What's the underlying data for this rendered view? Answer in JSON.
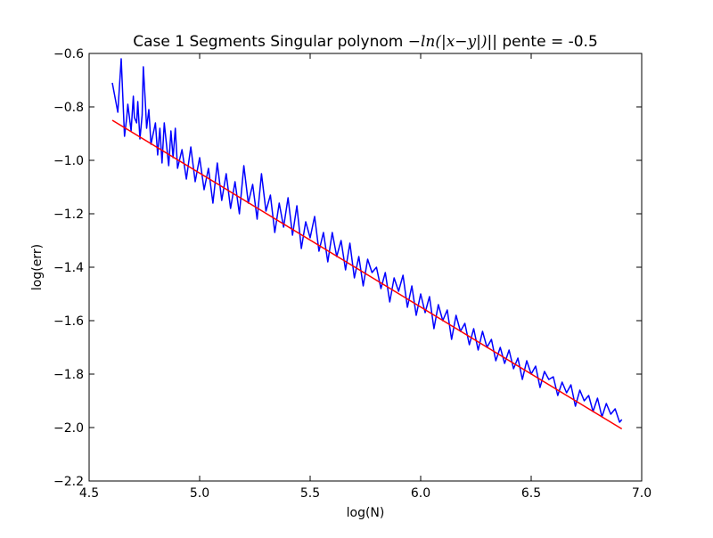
{
  "chart_data": {
    "type": "line",
    "title": {
      "prefix": "Case 1 Segments Singular polynom ",
      "math": "−ln(|x−y|)",
      "suffix": "|| pente = -0.5"
    },
    "xlabel": "log(N)",
    "ylabel": "log(err)",
    "xlim": [
      4.5,
      7.0
    ],
    "ylim": [
      -2.2,
      -0.6
    ],
    "xticks": [
      4.5,
      5.0,
      5.5,
      6.0,
      6.5,
      7.0
    ],
    "xtick_labels": [
      "4.5",
      "5.0",
      "5.5",
      "6.0",
      "6.5",
      "7.0"
    ],
    "yticks": [
      -0.6,
      -0.8,
      -1.0,
      -1.2,
      -1.4,
      -1.6,
      -1.8,
      -2.0,
      -2.2
    ],
    "ytick_labels": [
      "−0.6",
      "−0.8",
      "−1.0",
      "−1.2",
      "−1.4",
      "−1.6",
      "−1.8",
      "−2.0",
      "−2.2"
    ],
    "grid": false,
    "series": [
      {
        "color": "#0000ff",
        "x": [
          4.605,
          4.63,
          4.645,
          4.66,
          4.67,
          4.675,
          4.69,
          4.7,
          4.705,
          4.715,
          4.72,
          4.73,
          4.74,
          4.745,
          4.755,
          4.76,
          4.77,
          4.78,
          4.79,
          4.8,
          4.81,
          4.82,
          4.83,
          4.84,
          4.85,
          4.86,
          4.87,
          4.88,
          4.89,
          4.9,
          4.92,
          4.94,
          4.96,
          4.98,
          5.0,
          5.02,
          5.04,
          5.06,
          5.08,
          5.1,
          5.12,
          5.14,
          5.16,
          5.18,
          5.2,
          5.22,
          5.24,
          5.26,
          5.28,
          5.3,
          5.32,
          5.34,
          5.36,
          5.38,
          5.4,
          5.42,
          5.44,
          5.46,
          5.48,
          5.5,
          5.52,
          5.54,
          5.56,
          5.58,
          5.6,
          5.62,
          5.64,
          5.66,
          5.68,
          5.7,
          5.72,
          5.74,
          5.76,
          5.78,
          5.8,
          5.82,
          5.84,
          5.86,
          5.88,
          5.9,
          5.92,
          5.94,
          5.96,
          5.98,
          6.0,
          6.02,
          6.04,
          6.06,
          6.08,
          6.1,
          6.12,
          6.14,
          6.16,
          6.18,
          6.2,
          6.22,
          6.24,
          6.26,
          6.28,
          6.3,
          6.32,
          6.34,
          6.36,
          6.38,
          6.4,
          6.42,
          6.44,
          6.46,
          6.48,
          6.5,
          6.52,
          6.54,
          6.56,
          6.58,
          6.6,
          6.62,
          6.64,
          6.66,
          6.68,
          6.7,
          6.72,
          6.74,
          6.76,
          6.78,
          6.8,
          6.82,
          6.84,
          6.86,
          6.88,
          6.9,
          6.91
        ],
        "y": [
          -0.71,
          -0.82,
          -0.62,
          -0.91,
          -0.84,
          -0.79,
          -0.89,
          -0.76,
          -0.84,
          -0.86,
          -0.78,
          -0.92,
          -0.83,
          -0.65,
          -0.79,
          -0.88,
          -0.81,
          -0.94,
          -0.9,
          -0.86,
          -0.98,
          -0.88,
          -1.01,
          -0.86,
          -0.94,
          -1.02,
          -0.89,
          -0.99,
          -0.88,
          -1.03,
          -0.96,
          -1.07,
          -0.95,
          -1.08,
          -0.99,
          -1.11,
          -1.03,
          -1.16,
          -1.01,
          -1.15,
          -1.05,
          -1.18,
          -1.08,
          -1.2,
          -1.02,
          -1.16,
          -1.09,
          -1.22,
          -1.05,
          -1.19,
          -1.13,
          -1.27,
          -1.16,
          -1.25,
          -1.14,
          -1.28,
          -1.17,
          -1.33,
          -1.23,
          -1.29,
          -1.21,
          -1.34,
          -1.27,
          -1.38,
          -1.27,
          -1.36,
          -1.3,
          -1.41,
          -1.31,
          -1.44,
          -1.36,
          -1.47,
          -1.37,
          -1.42,
          -1.4,
          -1.48,
          -1.42,
          -1.53,
          -1.44,
          -1.49,
          -1.43,
          -1.55,
          -1.47,
          -1.58,
          -1.5,
          -1.57,
          -1.51,
          -1.63,
          -1.54,
          -1.6,
          -1.56,
          -1.67,
          -1.58,
          -1.64,
          -1.61,
          -1.69,
          -1.63,
          -1.71,
          -1.64,
          -1.7,
          -1.67,
          -1.75,
          -1.7,
          -1.76,
          -1.71,
          -1.78,
          -1.74,
          -1.82,
          -1.75,
          -1.8,
          -1.77,
          -1.85,
          -1.79,
          -1.82,
          -1.81,
          -1.88,
          -1.83,
          -1.87,
          -1.84,
          -1.92,
          -1.86,
          -1.9,
          -1.88,
          -1.94,
          -1.89,
          -1.96,
          -1.91,
          -1.95,
          -1.93,
          -1.98,
          -1.97
        ]
      },
      {
        "color": "#ff0000",
        "x": [
          4.605,
          6.91
        ],
        "y": [
          -0.85,
          -2.005
        ]
      }
    ]
  }
}
